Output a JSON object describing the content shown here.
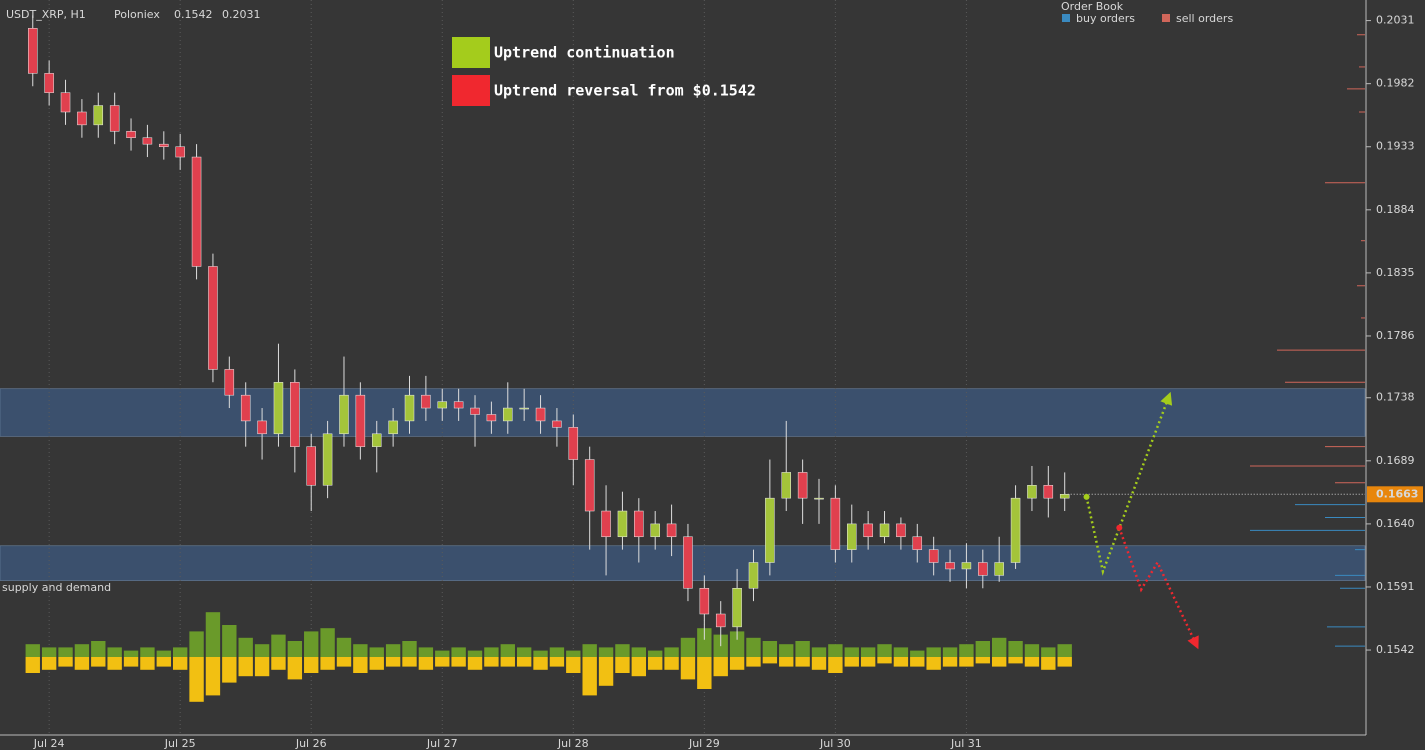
{
  "chart_data": {
    "type": "candlestick",
    "header": {
      "symbol": "USDT_XRP, H1",
      "exchange": "Poloniex",
      "low": 0.1542,
      "high": 0.2031
    },
    "x": [
      -3,
      0,
      3,
      6,
      9,
      12,
      15,
      18,
      21,
      24,
      27,
      30,
      33,
      36,
      39,
      42,
      45,
      48,
      51,
      54,
      57,
      60,
      63,
      66,
      69,
      72,
      75,
      78,
      81,
      84,
      87,
      90,
      93,
      96,
      99,
      102,
      105,
      108,
      111,
      114,
      117,
      120,
      123,
      126,
      129,
      132,
      135,
      138,
      141,
      144,
      147,
      150,
      153,
      156,
      159,
      162,
      165,
      168,
      171,
      174,
      177,
      180,
      183,
      186
    ],
    "candles": {
      "open": [
        0.2025,
        0.199,
        0.1975,
        0.196,
        0.195,
        0.1965,
        0.1945,
        0.194,
        0.1935,
        0.1933,
        0.1925,
        0.184,
        0.176,
        0.174,
        0.172,
        0.171,
        0.175,
        0.17,
        0.167,
        0.171,
        0.174,
        0.17,
        0.171,
        0.172,
        0.174,
        0.173,
        0.1735,
        0.173,
        0.1725,
        0.172,
        0.173,
        0.173,
        0.172,
        0.1715,
        0.169,
        0.165,
        0.163,
        0.165,
        0.163,
        0.164,
        0.163,
        0.159,
        0.157,
        0.156,
        0.159,
        0.161,
        0.166,
        0.168,
        0.166,
        0.166,
        0.162,
        0.164,
        0.163,
        0.164,
        0.163,
        0.162,
        0.161,
        0.1605,
        0.161,
        0.16,
        0.161,
        0.166,
        0.167,
        0.166
      ],
      "high": [
        0.2035,
        0.2,
        0.1985,
        0.197,
        0.1975,
        0.1975,
        0.1955,
        0.195,
        0.1945,
        0.1943,
        0.1935,
        0.185,
        0.177,
        0.175,
        0.173,
        0.178,
        0.176,
        0.171,
        0.172,
        0.177,
        0.175,
        0.172,
        0.173,
        0.1755,
        0.1755,
        0.1745,
        0.1745,
        0.174,
        0.1735,
        0.175,
        0.1745,
        0.174,
        0.173,
        0.1725,
        0.17,
        0.167,
        0.1665,
        0.166,
        0.165,
        0.1655,
        0.164,
        0.16,
        0.158,
        0.1605,
        0.162,
        0.169,
        0.172,
        0.169,
        0.1675,
        0.167,
        0.1655,
        0.165,
        0.165,
        0.1645,
        0.164,
        0.163,
        0.162,
        0.1625,
        0.162,
        0.163,
        0.167,
        0.1685,
        0.1685,
        0.168
      ],
      "low": [
        0.198,
        0.1965,
        0.195,
        0.194,
        0.194,
        0.1935,
        0.193,
        0.1925,
        0.1923,
        0.1915,
        0.183,
        0.175,
        0.173,
        0.17,
        0.169,
        0.17,
        0.168,
        0.165,
        0.166,
        0.17,
        0.169,
        0.168,
        0.17,
        0.171,
        0.172,
        0.172,
        0.172,
        0.17,
        0.171,
        0.171,
        0.172,
        0.171,
        0.17,
        0.167,
        0.162,
        0.16,
        0.162,
        0.161,
        0.162,
        0.1615,
        0.158,
        0.155,
        0.1545,
        0.155,
        0.158,
        0.16,
        0.165,
        0.164,
        0.164,
        0.161,
        0.161,
        0.162,
        0.1625,
        0.162,
        0.161,
        0.16,
        0.1595,
        0.159,
        0.159,
        0.1595,
        0.1605,
        0.165,
        0.1645,
        0.165
      ],
      "close": [
        0.199,
        0.1975,
        0.196,
        0.195,
        0.1965,
        0.1945,
        0.194,
        0.1935,
        0.1933,
        0.1925,
        0.184,
        0.176,
        0.174,
        0.172,
        0.171,
        0.175,
        0.17,
        0.167,
        0.171,
        0.174,
        0.17,
        0.171,
        0.172,
        0.174,
        0.173,
        0.1735,
        0.173,
        0.1725,
        0.172,
        0.173,
        0.173,
        0.172,
        0.1715,
        0.169,
        0.165,
        0.163,
        0.165,
        0.163,
        0.164,
        0.163,
        0.159,
        0.157,
        0.156,
        0.159,
        0.161,
        0.166,
        0.168,
        0.166,
        0.166,
        0.162,
        0.164,
        0.163,
        0.164,
        0.163,
        0.162,
        0.161,
        0.1605,
        0.161,
        0.16,
        0.161,
        0.166,
        0.167,
        0.166,
        0.1663
      ]
    },
    "up_color": "#a4c43a",
    "down_color": "#e0404e",
    "xlim": [
      -9,
      241
    ],
    "ylim": [
      0.1476,
      0.2047
    ],
    "xticks": [
      {
        "value": 0,
        "label": "Jul 24"
      },
      {
        "value": 24,
        "label": "Jul 25"
      },
      {
        "value": 48,
        "label": "Jul 26"
      },
      {
        "value": 72,
        "label": "Jul 27"
      },
      {
        "value": 96,
        "label": "Jul 28"
      },
      {
        "value": 120,
        "label": "Jul 29"
      },
      {
        "value": 144,
        "label": "Jul 30"
      },
      {
        "value": 168,
        "label": "Jul 31"
      }
    ],
    "yticks": [
      0.2031,
      0.1982,
      0.1933,
      0.1884,
      0.1835,
      0.1786,
      0.1738,
      0.1689,
      {
        "value": 0.164,
        "label": "0.1640"
      },
      0.1591,
      0.1542
    ],
    "grid": true,
    "last": 0.1663,
    "last_color": "#e8860c",
    "zones": [
      {
        "high": 0.1745,
        "low": 0.1708
      },
      {
        "high": 0.1623,
        "low": 0.1596
      }
    ],
    "zone_color": "#3d5a80",
    "volume": {
      "title": "supply and demand",
      "demand": {
        "color": "#6a9a2a",
        "values": [
          4,
          3,
          3,
          4,
          5,
          3,
          2,
          3,
          2,
          3,
          8,
          14,
          10,
          6,
          4,
          7,
          5,
          8,
          9,
          6,
          4,
          3,
          4,
          5,
          3,
          2,
          3,
          2,
          3,
          4,
          3,
          2,
          3,
          2,
          4,
          3,
          4,
          3,
          2,
          3,
          6,
          9,
          7,
          8,
          6,
          5,
          4,
          5,
          3,
          4,
          3,
          3,
          4,
          3,
          2,
          3,
          3,
          4,
          5,
          6,
          5,
          4,
          3,
          4
        ]
      },
      "supply": {
        "color": "#f2c012",
        "values": [
          5,
          4,
          3,
          4,
          3,
          4,
          3,
          4,
          3,
          4,
          14,
          12,
          8,
          6,
          6,
          4,
          7,
          5,
          4,
          3,
          5,
          4,
          3,
          3,
          4,
          3,
          3,
          4,
          3,
          3,
          3,
          4,
          3,
          5,
          12,
          9,
          5,
          6,
          4,
          4,
          7,
          10,
          6,
          4,
          3,
          2,
          3,
          3,
          4,
          5,
          3,
          3,
          2,
          3,
          3,
          4,
          3,
          3,
          2,
          3,
          2,
          3,
          4,
          3
        ]
      }
    },
    "order_book": {
      "title": "Order Book",
      "series": [
        {
          "name": "buy orders",
          "color": "#3a8ac0",
          "prices": [
            0.1655,
            0.1645,
            0.1635,
            0.162,
            0.16,
            0.159,
            0.156,
            0.1545
          ],
          "sizes": [
            70,
            40,
            115,
            10,
            30,
            25,
            38,
            30
          ]
        },
        {
          "name": "sell orders",
          "color": "#d0665a",
          "prices": [
            0.202,
            0.1995,
            0.1978,
            0.196,
            0.1905,
            0.186,
            0.1825,
            0.18,
            0.1775,
            0.175,
            0.17,
            0.1685,
            0.1672
          ],
          "sizes": [
            8,
            6,
            18,
            6,
            40,
            4,
            8,
            4,
            88,
            80,
            40,
            115,
            30
          ]
        }
      ]
    },
    "projections": [
      {
        "name": "Uptrend continuation",
        "color": "#a4cc1c",
        "x": [
          190,
          193,
          205
        ],
        "values": [
          0.1661,
          0.1603,
          0.1738
        ]
      },
      {
        "name": "Uptrend reversal from $0.1542",
        "color": "#f0282f",
        "x": [
          196,
          200,
          203,
          210
        ],
        "values": [
          0.1637,
          0.1589,
          0.161,
          0.1547
        ]
      }
    ]
  }
}
